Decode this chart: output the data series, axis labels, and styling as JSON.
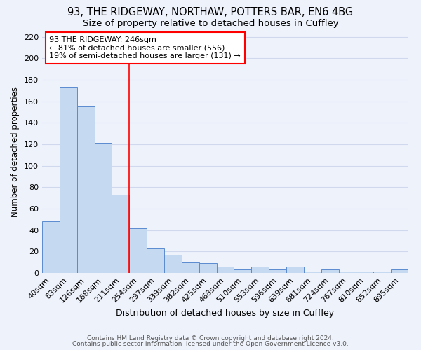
{
  "title1": "93, THE RIDGEWAY, NORTHAW, POTTERS BAR, EN6 4BG",
  "title2": "Size of property relative to detached houses in Cuffley",
  "xlabel": "Distribution of detached houses by size in Cuffley",
  "ylabel": "Number of detached properties",
  "bar_labels": [
    "40sqm",
    "83sqm",
    "126sqm",
    "168sqm",
    "211sqm",
    "254sqm",
    "297sqm",
    "339sqm",
    "382sqm",
    "425sqm",
    "468sqm",
    "510sqm",
    "553sqm",
    "596sqm",
    "639sqm",
    "681sqm",
    "724sqm",
    "767sqm",
    "810sqm",
    "852sqm",
    "895sqm"
  ],
  "bar_values": [
    48,
    173,
    155,
    121,
    73,
    42,
    23,
    17,
    10,
    9,
    6,
    3,
    6,
    3,
    6,
    1,
    3,
    1,
    1,
    1,
    3
  ],
  "bar_color": "#c5d9f0",
  "bar_edge_color": "#5b8bd0",
  "vline_x_idx": 5,
  "vline_color": "red",
  "ylim": [
    0,
    225
  ],
  "yticks": [
    0,
    20,
    40,
    60,
    80,
    100,
    120,
    140,
    160,
    180,
    200,
    220
  ],
  "annotation_text": "93 THE RIDGEWAY: 246sqm\n← 81% of detached houses are smaller (556)\n19% of semi-detached houses are larger (131) →",
  "footer1": "Contains HM Land Registry data © Crown copyright and database right 2024.",
  "footer2": "Contains public sector information licensed under the Open Government Licence v3.0.",
  "bg_color": "#eef2fb",
  "grid_color": "#d0d8ee",
  "title1_fontsize": 10.5,
  "title2_fontsize": 9.5,
  "xlabel_fontsize": 9,
  "ylabel_fontsize": 8.5,
  "tick_fontsize": 8,
  "footer_fontsize": 6.5
}
